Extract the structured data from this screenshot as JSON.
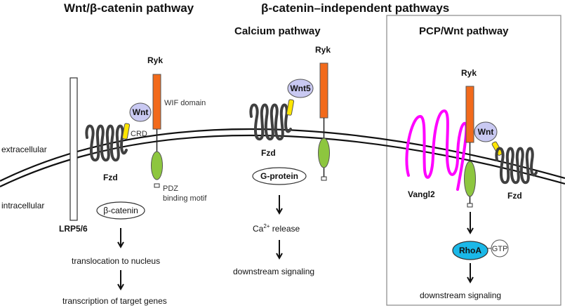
{
  "titles": {
    "wnt": "Wnt/β-catenin pathway",
    "independent": "β-catenin–independent pathways",
    "calcium": "Calcium pathway",
    "pcp": "PCP/Wnt pathway"
  },
  "membrane": {
    "extracellular": "extracellular",
    "intracellular": "intracellular"
  },
  "panel1": {
    "lrp": "LRP5/6",
    "fzd": "Fzd",
    "wnt": "Wnt",
    "crd": "CRD",
    "ryk": "Ryk",
    "wif": "WIF domain",
    "pdz1": "PDZ",
    "pdz2": "binding motif",
    "bcatenin": "β-catenin",
    "step1": "translocation to nucleus",
    "step2": "transcription of target genes"
  },
  "panel2": {
    "ryk": "Ryk",
    "wnt5": "Wnt5",
    "fzd": "Fzd",
    "gprotein": "G-protein",
    "ca_prefix": "Ca",
    "ca_sup": "2+",
    "ca_suffix": " release",
    "step": "downstream signaling"
  },
  "panel3": {
    "ryk": "Ryk",
    "vangl": "Vangl2",
    "wnt": "Wnt",
    "fzd": "Fzd",
    "rhoa": "RhoA",
    "gtp": "GTP",
    "step": "downstream signaling"
  },
  "colors": {
    "ryk": "#f26a1b",
    "pdz": "#8dc63f",
    "wnt": "#c9c9f2",
    "crd": "#ffe600",
    "vangl": "#ff00ff",
    "rhoa": "#1ab8e8",
    "fzd": "#404040"
  }
}
